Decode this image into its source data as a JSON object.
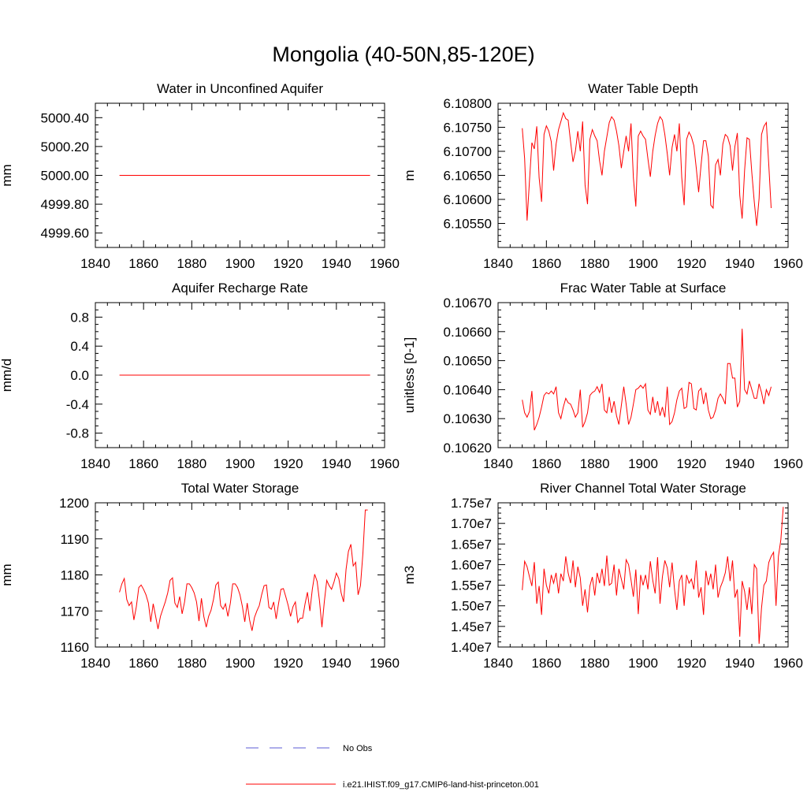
{
  "title": "Mongolia (40-50N,85-120E)",
  "legend": [
    {
      "label": "No Obs",
      "color": "#5b5bd6",
      "style": "dashed"
    },
    {
      "label": "i.e21.IHIST.f09_g17.CMIP6-land-hist-princeton.001",
      "color": "#ff0000",
      "style": "solid"
    }
  ],
  "chart_data": [
    {
      "type": "line",
      "title": "Water in Unconfined Aquifer",
      "ylabel": "mm",
      "xlim": [
        1840,
        1960
      ],
      "ylim": [
        4999.5,
        5000.5
      ],
      "xticks": [
        1840,
        1860,
        1880,
        1900,
        1920,
        1940,
        1960
      ],
      "yticks": [
        4999.6,
        4999.8,
        5000.0,
        5000.2,
        5000.4
      ],
      "ytick_labels": [
        "4999.60",
        "4999.80",
        "5000.00",
        "5000.20",
        "5000.40"
      ],
      "series": [
        {
          "color": "#ff0000",
          "x": [
            1850,
            1954
          ],
          "y": [
            5000.0,
            5000.0
          ]
        }
      ]
    },
    {
      "type": "line",
      "title": "Water Table Depth",
      "ylabel": "m",
      "xlim": [
        1840,
        1960
      ],
      "ylim": [
        6.105,
        6.108
      ],
      "xticks": [
        1840,
        1860,
        1880,
        1900,
        1920,
        1940,
        1960
      ],
      "yticks": [
        6.1055,
        6.106,
        6.1065,
        6.107,
        6.1075,
        6.108
      ],
      "ytick_labels": [
        "6.10550",
        "6.10600",
        "6.10650",
        "6.10700",
        "6.10750",
        "6.10800"
      ],
      "series": [
        {
          "color": "#ff0000",
          "x0": 1850,
          "dx": 1,
          "y": [
            6.10748,
            6.10685,
            6.10556,
            6.1064,
            6.10718,
            6.10705,
            6.10752,
            6.10645,
            6.10595,
            6.10735,
            6.10753,
            6.10742,
            6.1072,
            6.1066,
            6.10715,
            6.10745,
            6.10762,
            6.1078,
            6.10768,
            6.10765,
            6.1072,
            6.10678,
            6.107,
            6.10742,
            6.107,
            6.10762,
            6.1063,
            6.1059,
            6.10725,
            6.10745,
            6.10732,
            6.10722,
            6.1068,
            6.1065,
            6.107,
            6.1073,
            6.1076,
            6.10772,
            6.10765,
            6.10742,
            6.10712,
            6.10665,
            6.107,
            6.10732,
            6.107,
            6.10758,
            6.10645,
            6.10585,
            6.10732,
            6.10742,
            6.10732,
            6.10725,
            6.10685,
            6.10647,
            6.107,
            6.10733,
            6.10758,
            6.10772,
            6.10765,
            6.10735,
            6.10695,
            6.1065,
            6.10708,
            6.10735,
            6.107,
            6.10758,
            6.10645,
            6.10588,
            6.10725,
            6.1074,
            6.1073,
            6.10712,
            6.10665,
            6.10615,
            6.10672,
            6.10722,
            6.10722,
            6.1069,
            6.10588,
            6.10582,
            6.10672,
            6.10683,
            6.1065,
            6.10715,
            6.10735,
            6.1073,
            6.10712,
            6.1066,
            6.1071,
            6.10738,
            6.10608,
            6.1056,
            6.1066,
            6.10728,
            6.10725,
            6.10655,
            6.10595,
            6.10545,
            6.10602,
            6.10735,
            6.10752,
            6.1076,
            6.10672,
            6.10582
          ]
        }
      ]
    },
    {
      "type": "line",
      "title": "Aquifer Recharge Rate",
      "ylabel": "mm/d",
      "xlim": [
        1840,
        1960
      ],
      "ylim": [
        -1.0,
        1.0
      ],
      "xticks": [
        1840,
        1860,
        1880,
        1900,
        1920,
        1940,
        1960
      ],
      "yticks": [
        -0.8,
        -0.4,
        0.0,
        0.4,
        0.8
      ],
      "ytick_labels": [
        "-0.8",
        "-0.4",
        "0.0",
        "0.4",
        "0.8"
      ],
      "series": [
        {
          "color": "#ff0000",
          "x": [
            1850,
            1954
          ],
          "y": [
            0.0,
            0.0
          ]
        }
      ]
    },
    {
      "type": "line",
      "title": "Frac Water Table at Surface",
      "ylabel": "unitless [0-1]",
      "xlim": [
        1840,
        1960
      ],
      "ylim": [
        0.1062,
        0.1067
      ],
      "xticks": [
        1840,
        1860,
        1880,
        1900,
        1920,
        1940,
        1960
      ],
      "yticks": [
        0.1062,
        0.1063,
        0.1064,
        0.1065,
        0.1066,
        0.1067
      ],
      "ytick_labels": [
        "0.10620",
        "0.10630",
        "0.10640",
        "0.10650",
        "0.10660",
        "0.10670"
      ],
      "series": [
        {
          "color": "#ff0000",
          "x0": 1850,
          "dx": 1,
          "y": [
            0.106365,
            0.10632,
            0.106305,
            0.106325,
            0.106395,
            0.10626,
            0.10628,
            0.106305,
            0.10634,
            0.10638,
            0.10639,
            0.106385,
            0.106395,
            0.106385,
            0.10641,
            0.10632,
            0.1063,
            0.10634,
            0.10637,
            0.106355,
            0.10635,
            0.10633,
            0.106305,
            0.10632,
            0.1064,
            0.10627,
            0.10629,
            0.10632,
            0.10638,
            0.10639,
            0.106395,
            0.10641,
            0.10639,
            0.10642,
            0.10633,
            0.10632,
            0.106375,
            0.10632,
            0.10636,
            0.10631,
            0.10628,
            0.106345,
            0.10641,
            0.10635,
            0.10628,
            0.106305,
            0.10635,
            0.1064,
            0.106405,
            0.106415,
            0.106405,
            0.10642,
            0.10633,
            0.106315,
            0.106375,
            0.10632,
            0.10636,
            0.10631,
            0.10634,
            0.106305,
            0.10641,
            0.10628,
            0.10629,
            0.10632,
            0.106365,
            0.106395,
            0.106405,
            0.106335,
            0.10634,
            0.106425,
            0.10642,
            0.106335,
            0.10633,
            0.106395,
            0.106405,
            0.10635,
            0.10639,
            0.10633,
            0.1063,
            0.106305,
            0.10633,
            0.10637,
            0.106385,
            0.10637,
            0.10635,
            0.10649,
            0.10649,
            0.10644,
            0.10644,
            0.10634,
            0.10636,
            0.10661,
            0.1064,
            0.106385,
            0.10643,
            0.1064,
            0.10637,
            0.10637,
            0.10642,
            0.10639,
            0.10635,
            0.1064,
            0.10638,
            0.10641
          ]
        }
      ]
    },
    {
      "type": "line",
      "title": "Total Water Storage",
      "ylabel": "mm",
      "xlim": [
        1840,
        1960
      ],
      "ylim": [
        1160,
        1200
      ],
      "xticks": [
        1840,
        1860,
        1880,
        1900,
        1920,
        1940,
        1960
      ],
      "yticks": [
        1160,
        1170,
        1180,
        1190,
        1200
      ],
      "ytick_labels": [
        "1160",
        "1170",
        "1180",
        "1190",
        "1200"
      ],
      "series": [
        {
          "color": "#ff0000",
          "x0": 1850,
          "dx": 1,
          "y": [
            1175.2,
            1177.5,
            1179.0,
            1173.2,
            1171.5,
            1172.5,
            1167.5,
            1171.2,
            1176.5,
            1177.2,
            1176.0,
            1174.5,
            1172.2,
            1167.0,
            1172.0,
            1168.5,
            1165.0,
            1168.5,
            1170.5,
            1172.5,
            1175.0,
            1178.5,
            1179.2,
            1172.2,
            1171.0,
            1174.0,
            1169.2,
            1172.5,
            1177.5,
            1177.5,
            1176.5,
            1175.0,
            1172.5,
            1167.2,
            1173.5,
            1168.5,
            1165.5,
            1168.5,
            1170.2,
            1173.2,
            1177.2,
            1178.0,
            1171.5,
            1170.5,
            1172.0,
            1168.5,
            1172.2,
            1177.5,
            1177.5,
            1176.5,
            1174.5,
            1171.2,
            1167.0,
            1172.2,
            1167.5,
            1164.5,
            1168.2,
            1170.0,
            1171.5,
            1174.5,
            1177.0,
            1177.2,
            1171.0,
            1170.5,
            1172.5,
            1167.8,
            1172.0,
            1176.0,
            1176.2,
            1174.0,
            1171.5,
            1168.5,
            1171.2,
            1172.5,
            1166.8,
            1168.0,
            1168.0,
            1172.0,
            1175.2,
            1170.0,
            1176.0,
            1180.2,
            1178.2,
            1172.8,
            1165.5,
            1172.5,
            1178.5,
            1177.0,
            1176.0,
            1178.0,
            1180.5,
            1179.0,
            1175.0,
            1172.5,
            1181.5,
            1186.5,
            1188.5,
            1182.5,
            1183.5,
            1174.5,
            1177.0,
            1186.0,
            1198.0,
            1198.0
          ]
        }
      ]
    },
    {
      "type": "line",
      "title": "River Channel Total Water Storage",
      "ylabel": "m3",
      "xlim": [
        1840,
        1960
      ],
      "ylim": [
        14000000.0,
        17500000.0
      ],
      "xticks": [
        1840,
        1860,
        1880,
        1900,
        1920,
        1940,
        1960
      ],
      "yticks": [
        14000000.0,
        14500000.0,
        15000000.0,
        15500000.0,
        16000000.0,
        16500000.0,
        17000000.0,
        17500000.0
      ],
      "ytick_labels": [
        "1.40e7",
        "1.45e7",
        "1.50e7",
        "1.55e7",
        "1.60e7",
        "1.65e7",
        "1.70e7",
        "1.75e7"
      ],
      "series": [
        {
          "color": "#ff0000",
          "x0": 1850,
          "dx": 1,
          "y": [
            15380000.0,
            16080000.0,
            15950000.0,
            15700000.0,
            15480000.0,
            16060000.0,
            15050000.0,
            15480000.0,
            14780000.0,
            15900000.0,
            15500000.0,
            15300000.0,
            15750000.0,
            15550000.0,
            15800000.0,
            15300000.0,
            15780000.0,
            15600000.0,
            16200000.0,
            15800000.0,
            15550000.0,
            16100000.0,
            15450000.0,
            15950000.0,
            15680000.0,
            15000000.0,
            15400000.0,
            14840000.0,
            15480000.0,
            15700000.0,
            15250000.0,
            15800000.0,
            15550000.0,
            15900000.0,
            15480000.0,
            16220000.0,
            15500000.0,
            15550000.0,
            16000000.0,
            15250000.0,
            15900000.0,
            15650000.0,
            15400000.0,
            16120000.0,
            16000000.0,
            15630000.0,
            15220000.0,
            15880000.0,
            14800000.0,
            15750000.0,
            15500000.0,
            15750000.0,
            15400000.0,
            16080000.0,
            15620000.0,
            15300000.0,
            16180000.0,
            15050000.0,
            15700000.0,
            16100000.0,
            15920000.0,
            15450000.0,
            16050000.0,
            15400000.0,
            14900000.0,
            15600000.0,
            15750000.0,
            15000000.0,
            15750000.0,
            15550000.0,
            15650000.0,
            15400000.0,
            16100000.0,
            15200000.0,
            15450000.0,
            14780000.0,
            15850000.0,
            15500000.0,
            15780000.0,
            15400000.0,
            16000000.0,
            15200000.0,
            15450000.0,
            15600000.0,
            15800000.0,
            16200000.0,
            15600000.0,
            16100000.0,
            15200000.0,
            15400000.0,
            14250000.0,
            15600000.0,
            15350000.0,
            14900000.0,
            15450000.0,
            14800000.0,
            16000000.0,
            15900000.0,
            14080000.0,
            14950000.0,
            15500000.0,
            15600000.0,
            16050000.0,
            16200000.0,
            16300000.0,
            15000000.0,
            16200000.0,
            16600000.0,
            17400000.0
          ]
        }
      ]
    }
  ]
}
